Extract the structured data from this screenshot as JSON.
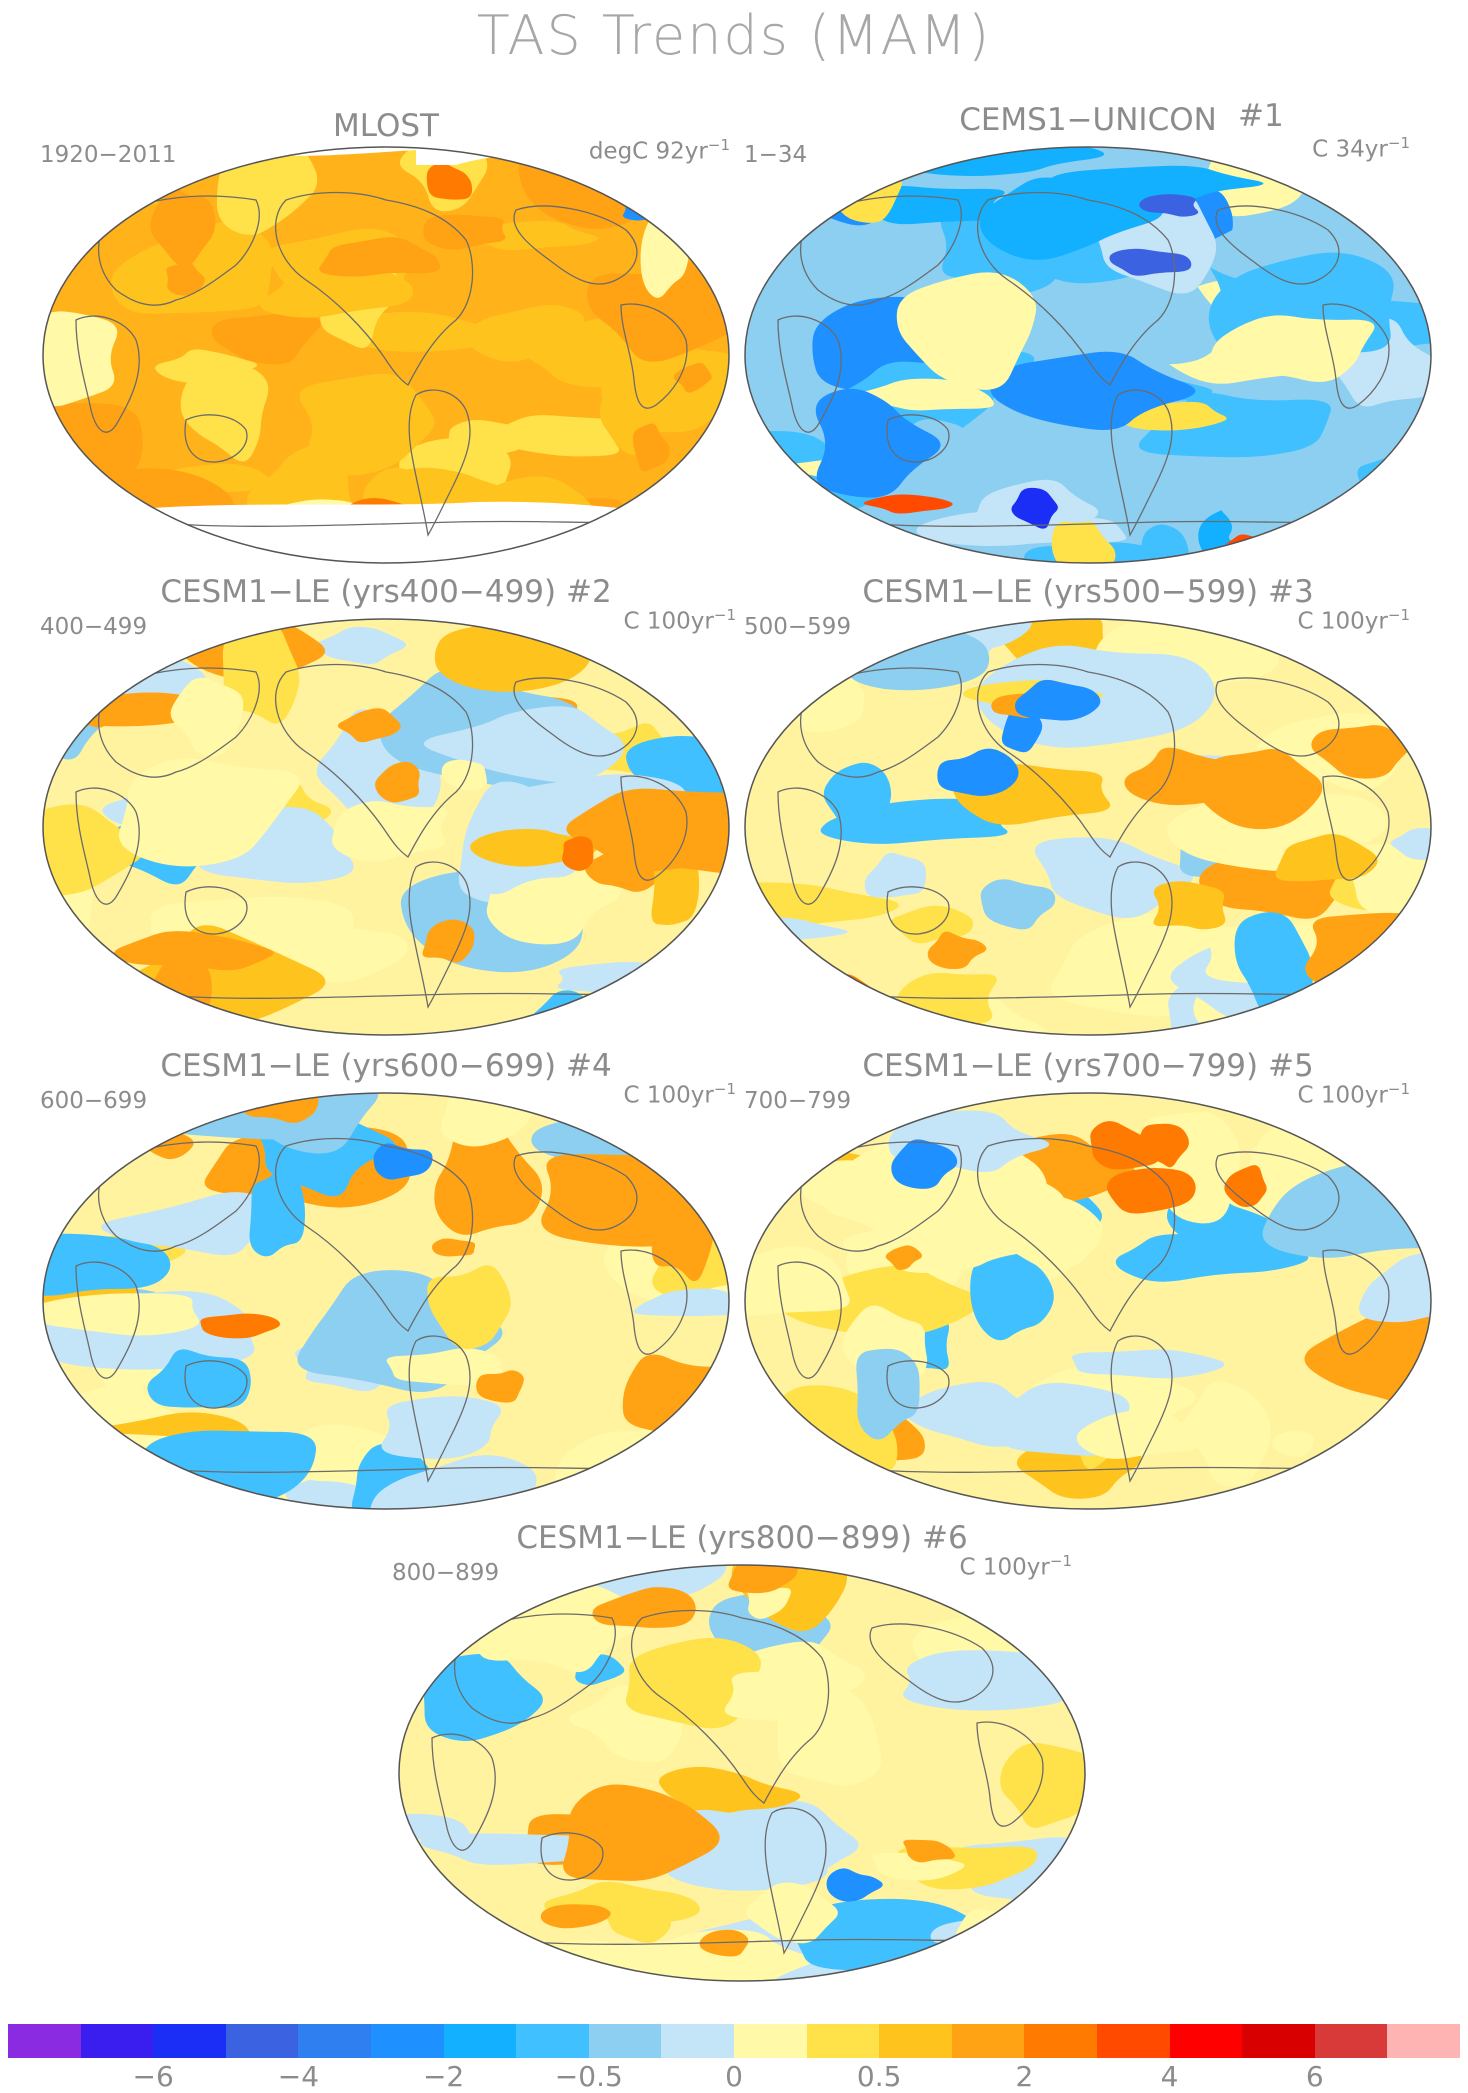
{
  "title": "TAS Trends (MAM)",
  "panels": [
    {
      "title": "MLOST",
      "left_label": "1920−2011",
      "unit": "degC 92yr",
      "unit_exp": "−1",
      "scheme": "warm"
    },
    {
      "title": "CEMS1−UNICON",
      "tag": "#1",
      "left_label": "1−34",
      "unit": "C 34yr",
      "unit_exp": "−1",
      "scheme": "cool"
    },
    {
      "title": "CESM1−LE (yrs400−499) #2",
      "left_label": "400−499",
      "unit": "C 100yr",
      "unit_exp": "−1",
      "scheme": "mixed"
    },
    {
      "title": "CESM1−LE (yrs500−599) #3",
      "left_label": "500−599",
      "unit": "C 100yr",
      "unit_exp": "−1",
      "scheme": "mixed"
    },
    {
      "title": "CESM1−LE (yrs600−699) #4",
      "left_label": "600−699",
      "unit": "C 100yr",
      "unit_exp": "−1",
      "scheme": "mixed"
    },
    {
      "title": "CESM1−LE (yrs700−799) #5",
      "left_label": "700−799",
      "unit": "C 100yr",
      "unit_exp": "−1",
      "scheme": "mixed"
    },
    {
      "title": "CESM1−LE (yrs800−899) #6",
      "left_label": "800−899",
      "unit": "C 100yr",
      "unit_exp": "−1",
      "scheme": "mixed"
    }
  ],
  "colorbar": {
    "colors": [
      "#8a2be2",
      "#3a1ef0",
      "#1a2ef5",
      "#3b62e0",
      "#2f7ff0",
      "#1e90ff",
      "#12b0ff",
      "#40c0ff",
      "#8ccff0",
      "#c4e4f8",
      "#fff9a8",
      "#ffe14a",
      "#ffc31e",
      "#ffa314",
      "#ff7a00",
      "#ff4a00",
      "#ff0000",
      "#d80000",
      "#d83a3a",
      "#ffb4b4"
    ],
    "labels": [
      "−6",
      "−4",
      "−2",
      "−0.5",
      "0",
      "0.5",
      "2",
      "4",
      "6"
    ]
  }
}
